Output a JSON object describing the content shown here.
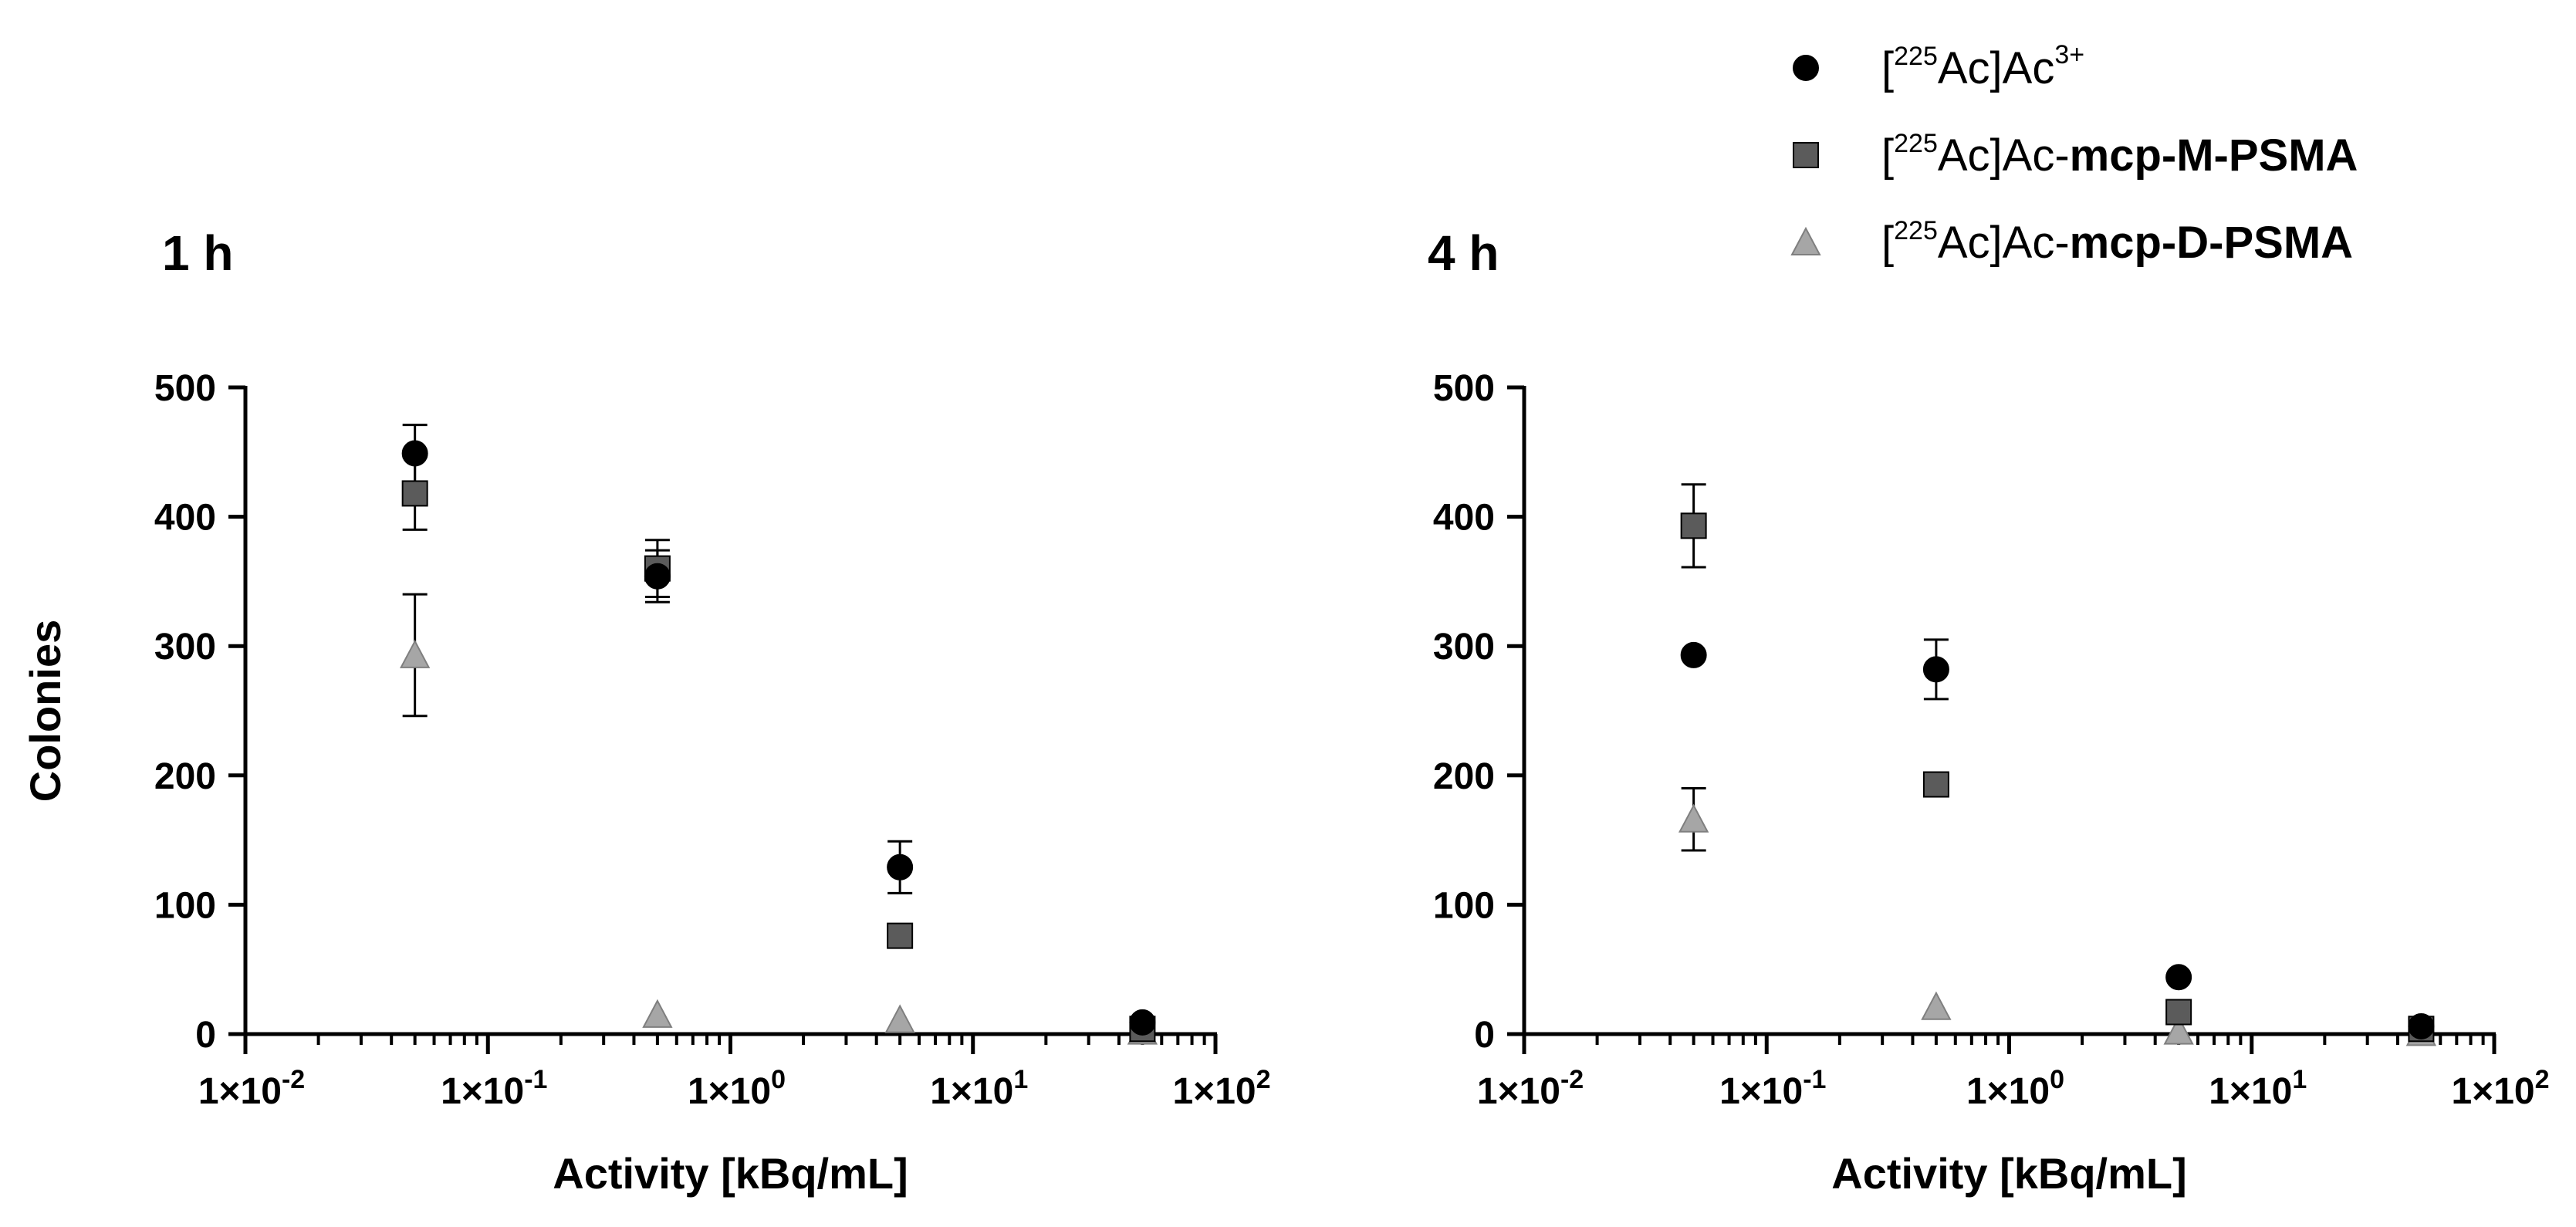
{
  "chart_data": [
    {
      "type": "scatter",
      "title": "1 h",
      "xlabel": "Activity [kBq/mL]",
      "ylabel": "Colonies",
      "x_scale": "log",
      "xlim": [
        0.01,
        100
      ],
      "ylim": [
        0,
        500
      ],
      "x_ticks": [
        "1×10-2",
        "1×10-1",
        "1×100",
        "1×101",
        "1×102"
      ],
      "y_ticks": [
        "0",
        "100",
        "200",
        "300",
        "400",
        "500"
      ],
      "grid": false,
      "series": [
        {
          "name": "[225Ac]Ac3+",
          "marker": "circle",
          "color": "#000000",
          "x": [
            0.05,
            0.5,
            5,
            50
          ],
          "y": [
            449,
            354,
            129,
            9
          ],
          "err": [
            22,
            20,
            20,
            0
          ]
        },
        {
          "name": "[225Ac]Ac-mcp-M-PSMA",
          "marker": "square",
          "color": "#5b5b5b",
          "x": [
            0.05,
            0.5,
            5,
            50
          ],
          "y": [
            418,
            360,
            76,
            4
          ],
          "err": [
            28,
            22,
            0,
            0
          ]
        },
        {
          "name": "[225Ac]Ac-mcp-D-PSMA",
          "marker": "triangle",
          "color": "#a6a6a6",
          "x": [
            0.05,
            0.5,
            5,
            50
          ],
          "y": [
            293,
            15,
            11,
            2
          ],
          "err": [
            47,
            0,
            0,
            0
          ]
        }
      ]
    },
    {
      "type": "scatter",
      "title": "4 h",
      "xlabel": "Activity [kBq/mL]",
      "ylabel": "",
      "x_scale": "log",
      "xlim": [
        0.01,
        100
      ],
      "ylim": [
        0,
        500
      ],
      "x_ticks": [
        "1×10-2",
        "1×10-1",
        "1×100",
        "1×101",
        "1×102"
      ],
      "y_ticks": [
        "0",
        "100",
        "200",
        "300",
        "400",
        "500"
      ],
      "grid": false,
      "series": [
        {
          "name": "[225Ac]Ac3+",
          "marker": "circle",
          "color": "#000000",
          "x": [
            0.05,
            0.5,
            5,
            50
          ],
          "y": [
            293,
            282,
            44,
            6
          ],
          "err": [
            0,
            23,
            0,
            0
          ]
        },
        {
          "name": "[225Ac]Ac-mcp-M-PSMA",
          "marker": "square",
          "color": "#5b5b5b",
          "x": [
            0.05,
            0.5,
            5,
            50
          ],
          "y": [
            393,
            193,
            17,
            4
          ],
          "err": [
            32,
            0,
            0,
            0
          ]
        },
        {
          "name": "[225Ac]Ac-mcp-D-PSMA",
          "marker": "triangle",
          "color": "#a6a6a6",
          "x": [
            0.05,
            0.5,
            5,
            50
          ],
          "y": [
            166,
            21,
            2,
            1
          ],
          "err": [
            24,
            0,
            0,
            0
          ]
        }
      ]
    }
  ],
  "legend": {
    "placement": "top-right",
    "items": [
      {
        "marker": "circle",
        "color": "#000000",
        "prefix": "[",
        "iso": "225",
        "mid": "Ac]Ac",
        "sup": "3+",
        "bold": ""
      },
      {
        "marker": "square",
        "color": "#5b5b5b",
        "prefix": "[",
        "iso": "225",
        "mid": "Ac]Ac-",
        "sup": "",
        "bold": "mcp-M-PSMA"
      },
      {
        "marker": "triangle",
        "color": "#a6a6a6",
        "prefix": "[",
        "iso": "225",
        "mid": "Ac]Ac-",
        "sup": "",
        "bold": "mcp-D-PSMA"
      }
    ]
  }
}
